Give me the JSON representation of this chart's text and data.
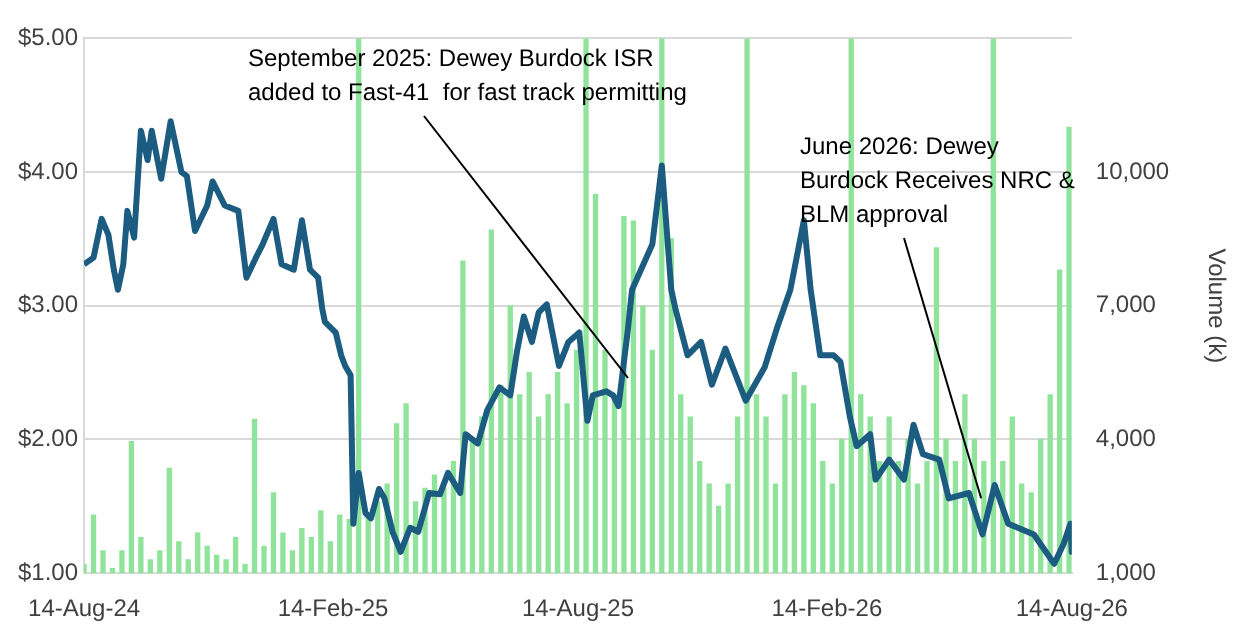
{
  "chart_data": {
    "type": "line",
    "y2label": "Volume (k)",
    "xlim": [
      "2024-08-14",
      "2026-08-14"
    ],
    "xticks": [
      {
        "value": "2024-08-14",
        "label": "14-Aug-24"
      },
      {
        "value": "2025-02-14",
        "label": "14-Feb-25"
      },
      {
        "value": "2025-08-14",
        "label": "14-Aug-25"
      },
      {
        "value": "2026-02-14",
        "label": "14-Feb-26"
      },
      {
        "value": "2026-08-14",
        "label": "14-Aug-26"
      }
    ],
    "ylim": [
      1,
      5
    ],
    "yticks": [
      {
        "value": 1,
        "label": "$1.00"
      },
      {
        "value": 2,
        "label": "$2.00"
      },
      {
        "value": 3,
        "label": "$3.00"
      },
      {
        "value": 4,
        "label": "$4.00"
      },
      {
        "value": 5,
        "label": "$5.00"
      }
    ],
    "y2lim": [
      1000,
      13000
    ],
    "y2ticks": [
      {
        "value": 1000,
        "label": "1,000"
      },
      {
        "value": 4000,
        "label": "4,000"
      },
      {
        "value": 7000,
        "label": "7,000"
      },
      {
        "value": 10000,
        "label": "10,000"
      },
      {
        "value": 13000,
        "label": null
      }
    ],
    "grid": "y",
    "legend": false,
    "series": [
      {
        "color": "#1b5c80",
        "x": [
          "2024-08-14",
          "2024-08-21",
          "2024-08-27",
          "2024-09-01",
          "2024-09-05",
          "2024-09-08",
          "2024-09-12",
          "2024-09-15",
          "2024-09-20",
          "2024-09-25",
          "2024-09-30",
          "2024-10-03",
          "2024-10-10",
          "2024-10-17",
          "2024-10-25",
          "2024-10-29",
          "2024-11-04",
          "2024-11-13",
          "2024-11-17",
          "2024-11-26",
          "2024-12-06",
          "2024-12-12",
          "2024-12-19",
          "2024-12-24",
          "2025-01-01",
          "2025-01-07",
          "2025-01-16",
          "2025-01-22",
          "2025-01-28",
          "2025-02-03",
          "2025-02-06",
          "2025-02-08",
          "2025-02-16",
          "2025-02-20",
          "2025-02-23",
          "2025-02-27",
          "2025-03-01",
          "2025-03-05",
          "2025-03-10",
          "2025-03-14",
          "2025-03-20",
          "2025-03-24",
          "2025-03-30",
          "2025-04-05",
          "2025-04-12",
          "2025-04-18",
          "2025-04-26",
          "2025-05-04",
          "2025-05-10",
          "2025-05-19",
          "2025-05-23",
          "2025-06-01",
          "2025-06-08",
          "2025-06-17",
          "2025-06-25",
          "2025-06-30",
          "2025-07-05",
          "2025-07-11",
          "2025-07-16",
          "2025-07-22",
          "2025-07-31",
          "2025-08-07",
          "2025-08-15",
          "2025-08-21",
          "2025-08-25",
          "2025-09-04",
          "2025-09-09",
          "2025-09-13",
          "2025-09-20",
          "2025-09-23",
          "2025-10-08",
          "2025-10-15",
          "2025-10-22",
          "2025-10-25",
          "2025-11-03",
          "2025-11-13",
          "2025-11-21",
          "2025-12-01",
          "2025-12-16",
          "2025-12-30",
          "2026-01-08",
          "2026-01-18",
          "2026-01-28",
          "2026-02-02",
          "2026-02-09",
          "2026-02-19",
          "2026-02-24",
          "2026-03-03",
          "2026-03-08",
          "2026-03-18",
          "2026-03-22",
          "2026-04-01",
          "2026-04-12",
          "2026-04-19",
          "2026-04-26",
          "2026-05-08",
          "2026-05-15",
          "2026-05-30",
          "2026-06-09",
          "2026-06-18",
          "2026-06-28",
          "2026-07-17",
          "2026-08-01",
          "2026-08-08",
          "2026-08-13",
          "2026-08-14"
        ],
        "values": [
          3.31,
          3.36,
          3.65,
          3.53,
          3.27,
          3.12,
          3.31,
          3.71,
          3.51,
          4.31,
          4.09,
          4.31,
          3.95,
          4.38,
          4.0,
          3.97,
          3.56,
          3.75,
          3.93,
          3.75,
          3.71,
          3.21,
          3.36,
          3.46,
          3.65,
          3.31,
          3.27,
          3.64,
          3.27,
          3.21,
          2.98,
          2.88,
          2.8,
          2.63,
          2.55,
          2.48,
          1.37,
          1.75,
          1.45,
          1.41,
          1.63,
          1.56,
          1.31,
          1.16,
          1.34,
          1.31,
          1.6,
          1.59,
          1.75,
          1.6,
          2.04,
          1.97,
          2.22,
          2.39,
          2.33,
          2.66,
          2.92,
          2.73,
          2.95,
          3.01,
          2.55,
          2.73,
          2.8,
          2.14,
          2.33,
          2.36,
          2.33,
          2.25,
          2.83,
          3.12,
          3.46,
          4.05,
          3.12,
          2.98,
          2.63,
          2.73,
          2.41,
          2.68,
          2.29,
          2.54,
          2.83,
          3.12,
          3.64,
          3.12,
          2.63,
          2.63,
          2.58,
          2.17,
          1.95,
          2.04,
          1.7,
          1.85,
          1.7,
          2.11,
          1.89,
          1.85,
          1.56,
          1.6,
          1.29,
          1.66,
          1.37,
          1.29,
          1.07,
          1.22,
          1.37,
          1.16
        ]
      },
      {
        "type": "bar",
        "axis": "y2",
        "color": "#90e39a",
        "x": [
          "2024-08-14",
          "2024-08-21",
          "2024-08-28",
          "2024-09-04",
          "2024-09-11",
          "2024-09-18",
          "2024-09-25",
          "2024-10-02",
          "2024-10-09",
          "2024-10-16",
          "2024-10-23",
          "2024-10-30",
          "2024-11-06",
          "2024-11-13",
          "2024-11-20",
          "2024-11-27",
          "2024-12-04",
          "2024-12-11",
          "2024-12-18",
          "2024-12-25",
          "2025-01-01",
          "2025-01-08",
          "2025-01-15",
          "2025-01-22",
          "2025-01-29",
          "2025-02-05",
          "2025-02-12",
          "2025-02-19",
          "2025-02-26",
          "2025-03-05",
          "2025-03-12",
          "2025-03-19",
          "2025-03-26",
          "2025-04-02",
          "2025-04-09",
          "2025-04-16",
          "2025-04-23",
          "2025-04-30",
          "2025-05-07",
          "2025-05-14",
          "2025-05-21",
          "2025-05-28",
          "2025-06-04",
          "2025-06-11",
          "2025-06-18",
          "2025-06-25",
          "2025-07-02",
          "2025-07-09",
          "2025-07-16",
          "2025-07-23",
          "2025-07-30",
          "2025-08-06",
          "2025-08-13",
          "2025-08-20",
          "2025-08-27",
          "2025-09-03",
          "2025-09-10",
          "2025-09-17",
          "2025-09-24",
          "2025-10-01",
          "2025-10-08",
          "2025-10-15",
          "2025-10-22",
          "2025-10-29",
          "2025-11-05",
          "2025-11-12",
          "2025-11-19",
          "2025-11-26",
          "2025-12-03",
          "2025-12-10",
          "2025-12-17",
          "2025-12-24",
          "2025-12-31",
          "2026-01-07",
          "2026-01-14",
          "2026-01-21",
          "2026-01-28",
          "2026-02-04",
          "2026-02-11",
          "2026-02-18",
          "2026-02-25",
          "2026-03-04",
          "2026-03-11",
          "2026-03-18",
          "2026-03-25",
          "2026-04-01",
          "2026-04-08",
          "2026-04-15",
          "2026-04-22",
          "2026-04-29",
          "2026-05-06",
          "2026-05-13",
          "2026-05-20",
          "2026-05-27",
          "2026-06-03",
          "2026-06-10",
          "2026-06-17",
          "2026-06-24",
          "2026-07-01",
          "2026-07-08",
          "2026-07-15",
          "2026-07-22",
          "2026-07-29",
          "2026-08-05",
          "2026-08-12"
        ],
        "values": [
          1200,
          2300,
          1500,
          1100,
          1500,
          3950,
          1800,
          1300,
          1500,
          3350,
          1700,
          1300,
          1900,
          1600,
          1400,
          1300,
          1800,
          1200,
          4450,
          1600,
          2800,
          1900,
          1500,
          2000,
          1800,
          2400,
          1700,
          2300,
          2200,
          13000,
          2300,
          2600,
          3000,
          4350,
          4800,
          2600,
          2900,
          3200,
          2900,
          3500,
          8000,
          4000,
          4500,
          8700,
          5200,
          7000,
          5000,
          5500,
          4500,
          5000,
          5500,
          4800,
          6000,
          13000,
          9500,
          6000,
          5000,
          9000,
          8900,
          7000,
          6000,
          13000,
          8500,
          5000,
          4500,
          3500,
          3000,
          2500,
          3000,
          4500,
          13000,
          5000,
          4500,
          3000,
          5000,
          5500,
          5200,
          4800,
          3500,
          3000,
          4000,
          13000,
          5000,
          4500,
          3500,
          4500,
          3500,
          4000,
          3000,
          3500,
          8300,
          4000,
          3500,
          5000,
          4000,
          3500,
          13000,
          3500,
          4500,
          3000,
          2800,
          4000,
          5000,
          7800,
          11000
        ]
      }
    ],
    "annotations": [
      {
        "text": "September 2025: Dewey Burdock ISR\nadded to Fast-41  for fast track permitting",
        "x": "2025-09-20",
        "y": 2.46
      },
      {
        "text": "June 2026: Dewey\nBurdock Receives NRC &\nBLM approval",
        "x": "2026-06-08",
        "y": 1.56
      }
    ]
  }
}
